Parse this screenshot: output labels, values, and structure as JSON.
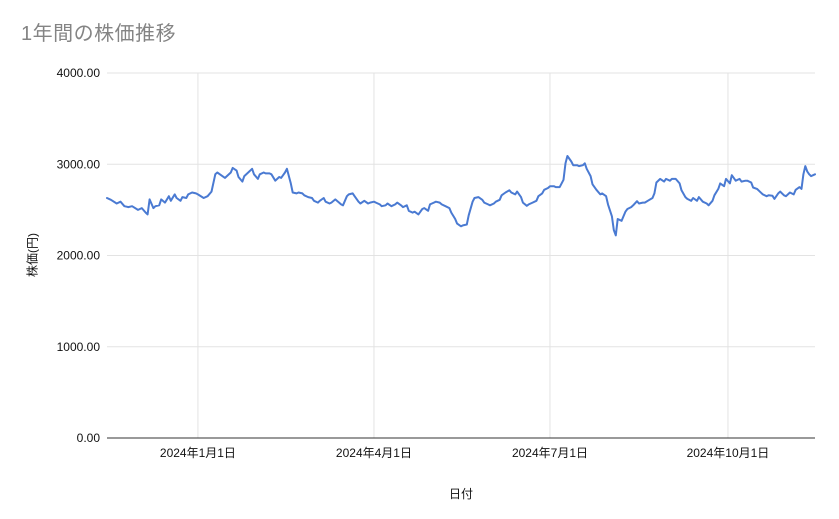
{
  "chart": {
    "title": "1年間の株価推移",
    "x_axis_title": "日付",
    "y_axis_title": "株価(円)",
    "colors": {
      "title_text": "#848484",
      "series_line": "#4a7ad2",
      "gridline": "#e3e3e3",
      "axis_line": "#333333",
      "tick_label": "#111111",
      "background": "#ffffff"
    }
  },
  "chart_data": {
    "type": "line",
    "title": "1年間の株価推移",
    "xlabel": "日付",
    "ylabel": "株価(円)",
    "ylim": [
      0,
      4000
    ],
    "grid": true,
    "legend": false,
    "y_ticks": [
      {
        "value": 4000,
        "label": "4000.00"
      },
      {
        "value": 3000,
        "label": "3000.00"
      },
      {
        "value": 2000,
        "label": "2000.00"
      },
      {
        "value": 1000,
        "label": "1000.00"
      },
      {
        "value": 0,
        "label": "0.00"
      }
    ],
    "x_range_days": 366,
    "x_ticks": [
      {
        "day": 47,
        "label": "2024年1月1日"
      },
      {
        "day": 138,
        "label": "2024年4月1日"
      },
      {
        "day": 229,
        "label": "2024年7月1日"
      },
      {
        "day": 321,
        "label": "2024年10月1日"
      }
    ],
    "series": [
      {
        "name": "株価",
        "points": [
          [
            0,
            2630
          ],
          [
            2,
            2610
          ],
          [
            5,
            2570
          ],
          [
            7,
            2590
          ],
          [
            9,
            2540
          ],
          [
            11,
            2530
          ],
          [
            13,
            2540
          ],
          [
            16,
            2500
          ],
          [
            18,
            2520
          ],
          [
            20,
            2470
          ],
          [
            21,
            2450
          ],
          [
            22,
            2615
          ],
          [
            24,
            2520
          ],
          [
            25,
            2540
          ],
          [
            27,
            2550
          ],
          [
            28,
            2615
          ],
          [
            30,
            2580
          ],
          [
            32,
            2650
          ],
          [
            33,
            2600
          ],
          [
            35,
            2670
          ],
          [
            36,
            2630
          ],
          [
            38,
            2600
          ],
          [
            39,
            2640
          ],
          [
            41,
            2630
          ],
          [
            42,
            2670
          ],
          [
            44,
            2690
          ],
          [
            46,
            2680
          ],
          [
            47,
            2670
          ],
          [
            50,
            2630
          ],
          [
            52,
            2650
          ],
          [
            54,
            2700
          ],
          [
            56,
            2890
          ],
          [
            57,
            2910
          ],
          [
            59,
            2880
          ],
          [
            61,
            2850
          ],
          [
            62,
            2870
          ],
          [
            64,
            2910
          ],
          [
            65,
            2960
          ],
          [
            67,
            2930
          ],
          [
            68,
            2860
          ],
          [
            70,
            2810
          ],
          [
            71,
            2870
          ],
          [
            73,
            2910
          ],
          [
            75,
            2950
          ],
          [
            76,
            2890
          ],
          [
            78,
            2840
          ],
          [
            79,
            2890
          ],
          [
            81,
            2910
          ],
          [
            82,
            2900
          ],
          [
            84,
            2900
          ],
          [
            85,
            2890
          ],
          [
            87,
            2820
          ],
          [
            89,
            2860
          ],
          [
            90,
            2850
          ],
          [
            92,
            2910
          ],
          [
            93,
            2950
          ],
          [
            95,
            2790
          ],
          [
            96,
            2690
          ],
          [
            98,
            2680
          ],
          [
            99,
            2690
          ],
          [
            101,
            2680
          ],
          [
            102,
            2660
          ],
          [
            104,
            2640
          ],
          [
            106,
            2630
          ],
          [
            107,
            2600
          ],
          [
            109,
            2580
          ],
          [
            110,
            2600
          ],
          [
            112,
            2630
          ],
          [
            113,
            2590
          ],
          [
            115,
            2570
          ],
          [
            116,
            2580
          ],
          [
            118,
            2615
          ],
          [
            120,
            2580
          ],
          [
            121,
            2560
          ],
          [
            122,
            2550
          ],
          [
            124,
            2650
          ],
          [
            125,
            2670
          ],
          [
            127,
            2680
          ],
          [
            128,
            2650
          ],
          [
            130,
            2590
          ],
          [
            131,
            2570
          ],
          [
            133,
            2600
          ],
          [
            135,
            2570
          ],
          [
            136,
            2580
          ],
          [
            138,
            2590
          ],
          [
            139,
            2580
          ],
          [
            141,
            2560
          ],
          [
            142,
            2540
          ],
          [
            144,
            2550
          ],
          [
            145,
            2570
          ],
          [
            147,
            2540
          ],
          [
            149,
            2560
          ],
          [
            150,
            2580
          ],
          [
            152,
            2550
          ],
          [
            153,
            2530
          ],
          [
            155,
            2550
          ],
          [
            156,
            2490
          ],
          [
            158,
            2470
          ],
          [
            159,
            2480
          ],
          [
            161,
            2450
          ],
          [
            163,
            2510
          ],
          [
            164,
            2520
          ],
          [
            166,
            2490
          ],
          [
            167,
            2560
          ],
          [
            169,
            2580
          ],
          [
            170,
            2590
          ],
          [
            172,
            2580
          ],
          [
            173,
            2560
          ],
          [
            175,
            2540
          ],
          [
            177,
            2520
          ],
          [
            178,
            2470
          ],
          [
            180,
            2400
          ],
          [
            181,
            2350
          ],
          [
            183,
            2320
          ],
          [
            184,
            2330
          ],
          [
            186,
            2340
          ],
          [
            187,
            2440
          ],
          [
            189,
            2590
          ],
          [
            190,
            2630
          ],
          [
            192,
            2640
          ],
          [
            194,
            2610
          ],
          [
            195,
            2580
          ],
          [
            197,
            2560
          ],
          [
            198,
            2550
          ],
          [
            200,
            2570
          ],
          [
            201,
            2590
          ],
          [
            203,
            2610
          ],
          [
            204,
            2660
          ],
          [
            206,
            2690
          ],
          [
            208,
            2715
          ],
          [
            209,
            2690
          ],
          [
            211,
            2670
          ],
          [
            212,
            2700
          ],
          [
            214,
            2640
          ],
          [
            215,
            2580
          ],
          [
            217,
            2545
          ],
          [
            218,
            2560
          ],
          [
            220,
            2580
          ],
          [
            222,
            2600
          ],
          [
            223,
            2650
          ],
          [
            225,
            2680
          ],
          [
            226,
            2720
          ],
          [
            228,
            2740
          ],
          [
            229,
            2760
          ],
          [
            231,
            2760
          ],
          [
            232,
            2750
          ],
          [
            234,
            2750
          ],
          [
            236,
            2830
          ],
          [
            237,
            3010
          ],
          [
            238,
            3090
          ],
          [
            240,
            3030
          ],
          [
            241,
            2990
          ],
          [
            243,
            2990
          ],
          [
            244,
            2980
          ],
          [
            246,
            2990
          ],
          [
            247,
            3010
          ],
          [
            248,
            2950
          ],
          [
            250,
            2870
          ],
          [
            251,
            2780
          ],
          [
            253,
            2720
          ],
          [
            255,
            2670
          ],
          [
            256,
            2680
          ],
          [
            258,
            2650
          ],
          [
            259,
            2560
          ],
          [
            261,
            2430
          ],
          [
            262,
            2280
          ],
          [
            263,
            2220
          ],
          [
            264,
            2400
          ],
          [
            266,
            2380
          ],
          [
            268,
            2480
          ],
          [
            269,
            2510
          ],
          [
            271,
            2530
          ],
          [
            272,
            2550
          ],
          [
            274,
            2595
          ],
          [
            275,
            2570
          ],
          [
            277,
            2580
          ],
          [
            278,
            2580
          ],
          [
            280,
            2605
          ],
          [
            282,
            2630
          ],
          [
            283,
            2680
          ],
          [
            284,
            2800
          ],
          [
            286,
            2840
          ],
          [
            288,
            2810
          ],
          [
            289,
            2840
          ],
          [
            291,
            2820
          ],
          [
            292,
            2840
          ],
          [
            294,
            2840
          ],
          [
            296,
            2790
          ],
          [
            297,
            2715
          ],
          [
            299,
            2640
          ],
          [
            300,
            2620
          ],
          [
            302,
            2600
          ],
          [
            303,
            2630
          ],
          [
            305,
            2600
          ],
          [
            306,
            2640
          ],
          [
            308,
            2590
          ],
          [
            310,
            2570
          ],
          [
            311,
            2550
          ],
          [
            313,
            2600
          ],
          [
            314,
            2660
          ],
          [
            316,
            2730
          ],
          [
            317,
            2790
          ],
          [
            319,
            2760
          ],
          [
            320,
            2840
          ],
          [
            322,
            2790
          ],
          [
            323,
            2880
          ],
          [
            325,
            2820
          ],
          [
            327,
            2840
          ],
          [
            328,
            2810
          ],
          [
            330,
            2820
          ],
          [
            331,
            2820
          ],
          [
            333,
            2800
          ],
          [
            334,
            2745
          ],
          [
            336,
            2730
          ],
          [
            337,
            2710
          ],
          [
            339,
            2670
          ],
          [
            341,
            2650
          ],
          [
            342,
            2660
          ],
          [
            344,
            2655
          ],
          [
            345,
            2620
          ],
          [
            347,
            2680
          ],
          [
            348,
            2700
          ],
          [
            350,
            2660
          ],
          [
            351,
            2650
          ],
          [
            353,
            2690
          ],
          [
            355,
            2670
          ],
          [
            356,
            2720
          ],
          [
            358,
            2750
          ],
          [
            359,
            2730
          ],
          [
            360,
            2890
          ],
          [
            361,
            2980
          ],
          [
            362,
            2920
          ],
          [
            363,
            2890
          ],
          [
            364,
            2870
          ],
          [
            365,
            2880
          ],
          [
            366,
            2890
          ]
        ]
      }
    ]
  }
}
